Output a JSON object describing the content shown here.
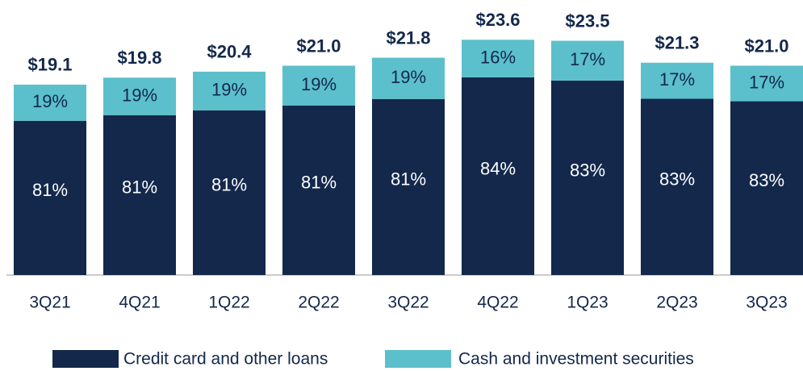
{
  "chart_data": {
    "type": "bar",
    "categories": [
      "3Q21",
      "4Q21",
      "1Q22",
      "2Q22",
      "3Q22",
      "4Q22",
      "1Q23",
      "2Q23",
      "3Q23"
    ],
    "values": [
      19.1,
      19.8,
      20.4,
      21.0,
      21.8,
      23.6,
      23.5,
      21.3,
      21.0
    ],
    "value_labels": [
      "$19.1",
      "$19.8",
      "$20.4",
      "$21.0",
      "$21.8",
      "$23.6",
      "$23.5",
      "$21.3",
      "$21.0"
    ],
    "ylim": [
      0,
      25
    ],
    "series": [
      {
        "name": "Credit card and other loans",
        "color": "#13284b",
        "values": [
          81,
          81,
          81,
          81,
          81,
          84,
          83,
          83,
          83
        ],
        "value_labels": [
          "81%",
          "81%",
          "81%",
          "81%",
          "81%",
          "84%",
          "83%",
          "83%",
          "83%"
        ]
      },
      {
        "name": "Cash and investment securities",
        "color": "#5bc0cb",
        "values": [
          19,
          19,
          19,
          19,
          19,
          16,
          17,
          17,
          17
        ],
        "value_labels": [
          "19%",
          "19%",
          "19%",
          "19%",
          "19%",
          "16%",
          "17%",
          "17%",
          "17%"
        ]
      }
    ]
  }
}
